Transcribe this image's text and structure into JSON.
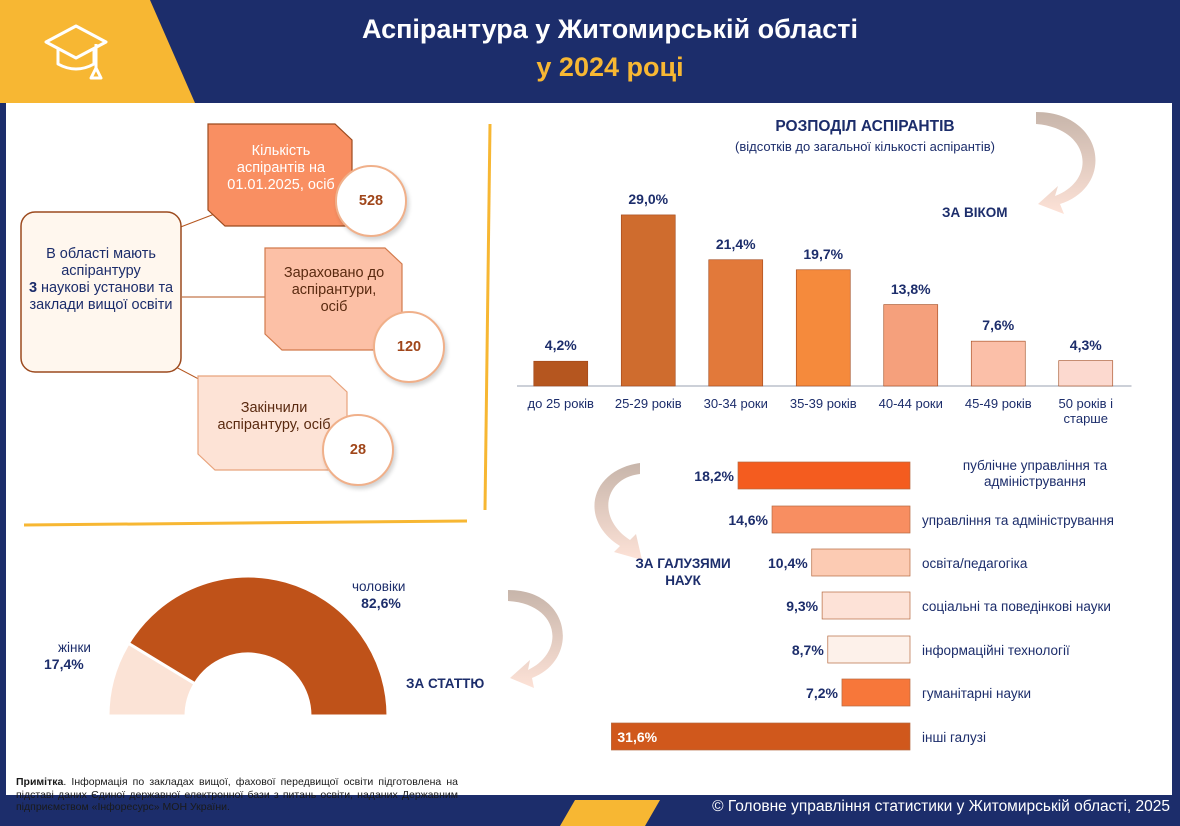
{
  "header": {
    "title_line1": "Аспірантура у Житомирській області",
    "title_line2": "у 2024 році"
  },
  "summary": {
    "main": {
      "before": "В області  мають аспірантуру",
      "bold": "3",
      "after": "наукові установи та заклади вищої освіти"
    },
    "boxes": [
      {
        "label": "Кількість аспірантів на 01.01.2025, осіб",
        "value": "528"
      },
      {
        "label": "Зараховано до аспірантури, осіб",
        "value": "120"
      },
      {
        "label": "Закінчили аспірантуру, осіб",
        "value": "28"
      }
    ]
  },
  "distribution": {
    "title": "РОЗПОДІЛ АСПІРАНТІВ",
    "subtitle": "(відсотків до загальної кількості аспірантів)",
    "by_age_label": "ЗА ВІКОМ",
    "by_field_label": "ЗА ГАЛУЗЯМИ НАУК",
    "by_sex_label": "ЗА СТАТТЮ"
  },
  "chart_data": [
    {
      "type": "bar",
      "categories": [
        "до 25 років",
        "25-29 років",
        "30-34 роки",
        "35-39 років",
        "40-44 роки",
        "45-49 років",
        "50 років і старше"
      ],
      "values": [
        4.2,
        29.0,
        21.4,
        19.7,
        13.8,
        7.6,
        4.3
      ],
      "value_labels": [
        "4,2%",
        "29,0%",
        "21,4%",
        "19,7%",
        "13,8%",
        "7,6%",
        "4,3%"
      ],
      "colors": [
        "#b5561f",
        "#cf6c2e",
        "#e2793a",
        "#f58a3c",
        "#f5a07c",
        "#fbbfa8",
        "#fcd9cf"
      ],
      "title": "",
      "ylim": [
        0,
        32
      ]
    },
    {
      "type": "bar",
      "orientation": "horizontal",
      "categories": [
        "публічне управління та адміністрування",
        "управління та адміністрування",
        "освіта/педагогіка",
        "соціальні та поведінкові науки",
        "інформаційні технології",
        "гуманітарні науки",
        "інші галузі"
      ],
      "values": [
        18.2,
        14.6,
        10.4,
        9.3,
        8.7,
        7.2,
        31.6
      ],
      "value_labels": [
        "18,2%",
        "14,6%",
        "10,4%",
        "9,3%",
        "8,7%",
        "7,2%",
        "31,6%"
      ],
      "colors": [
        "#f45c1f",
        "#f88e61",
        "#fccbb3",
        "#fde2d7",
        "#fdf1ea",
        "#f7773a",
        "#d0581c"
      ]
    },
    {
      "type": "pie",
      "style": "half-donut",
      "categories": [
        "жінки",
        "чоловіки"
      ],
      "values": [
        17.4,
        82.6
      ],
      "value_labels": [
        "17,4%",
        "82,6%"
      ],
      "colors": [
        "#fbe3d6",
        "#bf5219"
      ]
    }
  ],
  "note": {
    "bold": "Примітка",
    "text": ". Інформація по закладах вищої, фахової передвищої освіти підготовлена на підставі даних Єдиної державної електронної бази з питань освіти, наданих Державним підприємством «Інфоресурс» МОН України."
  },
  "footer": "© Головне управління статистики у Житомирській області, 2025"
}
